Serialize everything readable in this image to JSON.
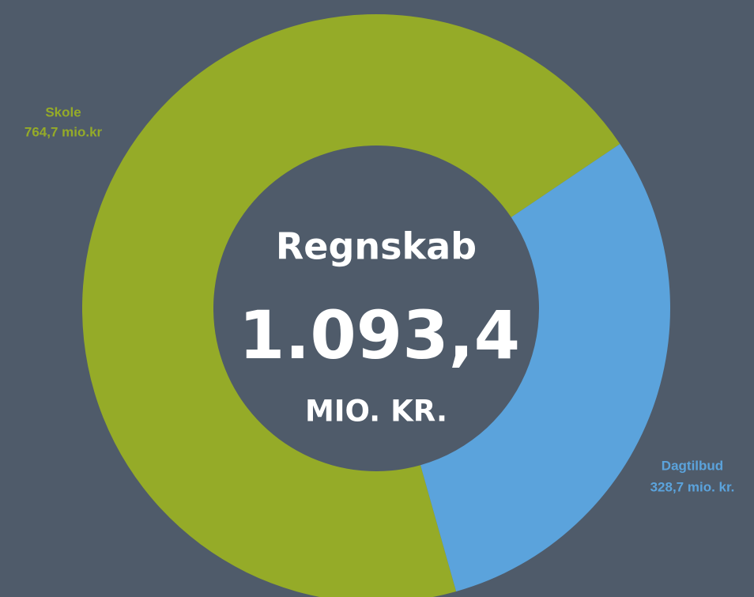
{
  "chart_data": {
    "type": "donut",
    "categories": [
      "Skole",
      "Dagtilbud"
    ],
    "values": [
      764.7,
      328.7
    ],
    "value_labels": [
      "764,7 mio.kr",
      "328,7 mio. kr."
    ],
    "colors": [
      "#95ab28",
      "#5ba3dc"
    ],
    "center_title": "Regnskab",
    "total": 1093.4,
    "total_label": "1.093,4",
    "total_unit": "MIO. KR."
  }
}
